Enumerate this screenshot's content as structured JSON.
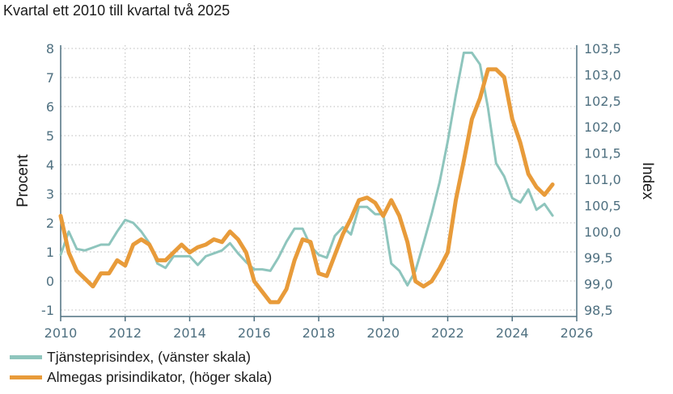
{
  "chart_data": {
    "type": "line",
    "title": "Kvartal ett 2010 till kvartal två 2025",
    "ylabel_left": "Procent",
    "ylabel_right": "Index",
    "x_ticks": [
      "2010",
      "2012",
      "2014",
      "2016",
      "2018",
      "2020",
      "2022",
      "2024",
      "2026"
    ],
    "y_left_ticks": [
      "8",
      "7",
      "6",
      "5",
      "4",
      "3",
      "2",
      "1",
      "0",
      "-1"
    ],
    "y_right_ticks": [
      "103,5",
      "103,0",
      "102,5",
      "102,0",
      "101,5",
      "101,0",
      "100,5",
      "100,0",
      "99,5",
      "99,0",
      "98,5"
    ],
    "xlim": [
      2010,
      2026
    ],
    "ylim_left": [
      -1.3,
      8.4
    ],
    "ylim_right": [
      98.3,
      103.65
    ],
    "grid": true,
    "legend_position": "bottom-left",
    "colors": {
      "left_series": "#8ec5bd",
      "right_series": "#e89b3a",
      "axis": "#4f7080",
      "grid": "#bbbbbb"
    },
    "series": [
      {
        "name": "Tjänsteprisindex, (vänster skala)",
        "axis": "left",
        "x": [
          2010.0,
          2010.25,
          2010.5,
          2010.75,
          2011.0,
          2011.25,
          2011.5,
          2011.75,
          2012.0,
          2012.25,
          2012.5,
          2012.75,
          2013.0,
          2013.25,
          2013.5,
          2013.75,
          2014.0,
          2014.25,
          2014.5,
          2014.75,
          2015.0,
          2015.25,
          2015.5,
          2015.75,
          2016.0,
          2016.25,
          2016.5,
          2016.75,
          2017.0,
          2017.25,
          2017.5,
          2017.75,
          2018.0,
          2018.25,
          2018.5,
          2018.75,
          2019.0,
          2019.25,
          2019.5,
          2019.75,
          2020.0,
          2020.25,
          2020.5,
          2020.75,
          2021.0,
          2021.25,
          2021.5,
          2021.75,
          2022.0,
          2022.25,
          2022.5,
          2022.75,
          2023.0,
          2023.25,
          2023.5,
          2023.75,
          2024.0,
          2024.25,
          2024.5,
          2024.75,
          2025.0,
          2025.25
        ],
        "values": [
          0.9,
          1.7,
          1.1,
          1.05,
          1.15,
          1.25,
          1.25,
          1.7,
          2.1,
          2.0,
          1.7,
          1.3,
          0.6,
          0.45,
          0.85,
          0.85,
          0.85,
          0.55,
          0.85,
          0.95,
          1.05,
          1.3,
          0.95,
          0.65,
          0.4,
          0.4,
          0.35,
          0.8,
          1.35,
          1.8,
          1.8,
          1.2,
          0.9,
          0.8,
          1.55,
          1.85,
          1.6,
          2.55,
          2.55,
          2.3,
          2.3,
          0.6,
          0.35,
          -0.15,
          0.35,
          1.3,
          2.3,
          3.4,
          4.8,
          6.4,
          7.85,
          7.85,
          7.45,
          5.95,
          4.05,
          3.6,
          2.85,
          2.7,
          3.15,
          2.45,
          2.65,
          2.25
        ]
      },
      {
        "name": "Almegas prisindikator, (höger skala)",
        "axis": "right",
        "x": [
          2010.0,
          2010.25,
          2010.5,
          2010.75,
          2011.0,
          2011.25,
          2011.5,
          2011.75,
          2012.0,
          2012.25,
          2012.5,
          2012.75,
          2013.0,
          2013.25,
          2013.5,
          2013.75,
          2014.0,
          2014.25,
          2014.5,
          2014.75,
          2015.0,
          2015.25,
          2015.5,
          2015.75,
          2016.0,
          2016.25,
          2016.5,
          2016.75,
          2017.0,
          2017.25,
          2017.5,
          2017.75,
          2018.0,
          2018.25,
          2018.5,
          2018.75,
          2019.0,
          2019.25,
          2019.5,
          2019.75,
          2020.0,
          2020.25,
          2020.5,
          2020.75,
          2021.0,
          2021.25,
          2021.5,
          2021.75,
          2022.0,
          2022.25,
          2022.5,
          2022.75,
          2023.0,
          2023.25,
          2023.5,
          2023.75,
          2024.0,
          2024.25,
          2024.5,
          2024.75,
          2025.0,
          2025.25
        ],
        "values": [
          100.3,
          99.6,
          99.25,
          99.1,
          98.95,
          99.2,
          99.2,
          99.45,
          99.35,
          99.75,
          99.85,
          99.75,
          99.45,
          99.45,
          99.6,
          99.75,
          99.6,
          99.7,
          99.75,
          99.85,
          99.8,
          100.0,
          99.85,
          99.6,
          99.05,
          98.85,
          98.65,
          98.65,
          98.9,
          99.45,
          99.85,
          99.8,
          99.2,
          99.15,
          99.55,
          99.95,
          100.25,
          100.6,
          100.65,
          100.55,
          100.3,
          100.6,
          100.3,
          99.8,
          99.05,
          98.95,
          99.05,
          99.3,
          99.6,
          100.6,
          101.35,
          102.15,
          102.55,
          103.1,
          103.1,
          102.95,
          102.15,
          101.7,
          101.1,
          100.85,
          100.7,
          100.9
        ]
      }
    ]
  }
}
